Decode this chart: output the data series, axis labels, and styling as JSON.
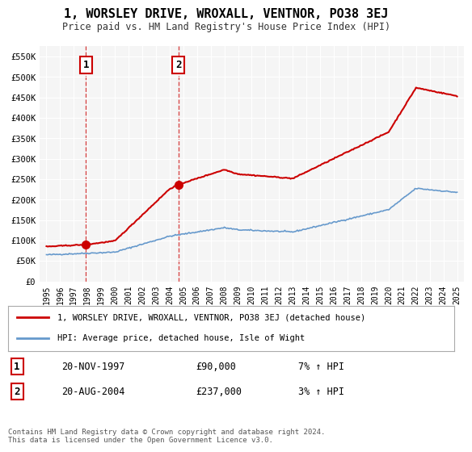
{
  "title": "1, WORSLEY DRIVE, WROXALL, VENTNOR, PO38 3EJ",
  "subtitle": "Price paid vs. HM Land Registry's House Price Index (HPI)",
  "legend_label_red": "1, WORSLEY DRIVE, WROXALL, VENTNOR, PO38 3EJ (detached house)",
  "legend_label_blue": "HPI: Average price, detached house, Isle of Wight",
  "annotation1_label": "1",
  "annotation1_date": "20-NOV-1997",
  "annotation1_price": "£90,000",
  "annotation1_hpi": "7% ↑ HPI",
  "annotation2_label": "2",
  "annotation2_date": "20-AUG-2004",
  "annotation2_price": "£237,000",
  "annotation2_hpi": "3% ↑ HPI",
  "footnote": "Contains HM Land Registry data © Crown copyright and database right 2024.\nThis data is licensed under the Open Government Licence v3.0.",
  "sale1_x": 1997.89,
  "sale1_y": 90000,
  "sale2_x": 2004.64,
  "sale2_y": 237000,
  "hpi_color": "#6699cc",
  "price_color": "#cc0000",
  "dashed_color": "#cc0000",
  "background_chart": "#f5f5f5",
  "background_fig": "#ffffff",
  "ylim_min": 0,
  "ylim_max": 575000,
  "xlim_min": 1994.5,
  "xlim_max": 2025.5,
  "yticks": [
    0,
    50000,
    100000,
    150000,
    200000,
    250000,
    300000,
    350000,
    400000,
    450000,
    500000,
    550000
  ],
  "xticks": [
    1995,
    1996,
    1997,
    1998,
    1999,
    2000,
    2001,
    2002,
    2003,
    2004,
    2005,
    2006,
    2007,
    2008,
    2009,
    2010,
    2011,
    2012,
    2013,
    2014,
    2015,
    2016,
    2017,
    2018,
    2019,
    2020,
    2021,
    2022,
    2023,
    2024,
    2025
  ]
}
